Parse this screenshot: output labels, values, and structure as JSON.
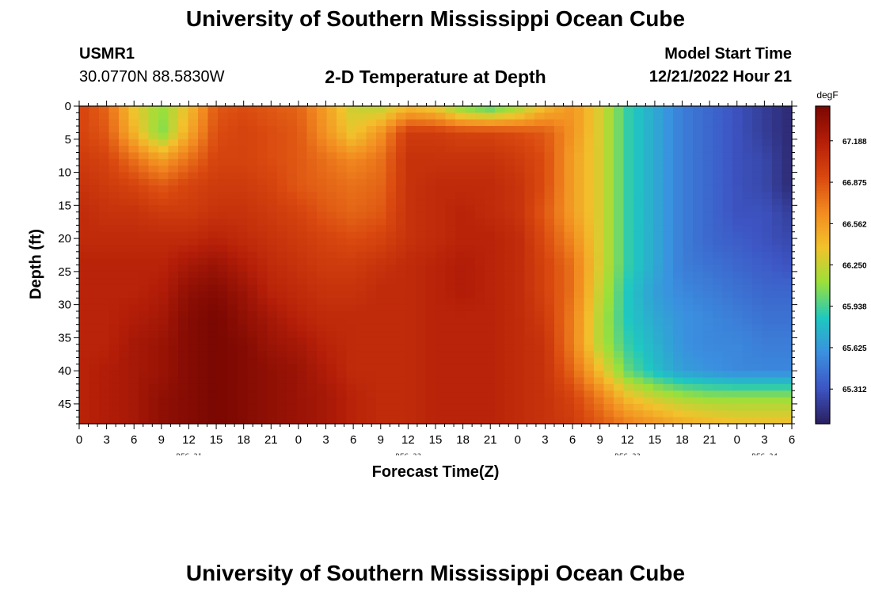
{
  "page": {
    "title_top": "University of Southern Mississippi Ocean Cube",
    "title_bottom": "University of Southern Mississippi Ocean Cube",
    "station_id": "USMR1",
    "station_coords": "30.0770N  88.5830W",
    "plot_title": "2-D Temperature at Depth",
    "model_start_label": "Model Start Time",
    "model_start_value": "12/21/2022 Hour 21"
  },
  "colors": {
    "palette": [
      "#2a1f5e",
      "#3d55c4",
      "#3b8fe0",
      "#1fc8c0",
      "#9be03a",
      "#f2c22c",
      "#f28a20",
      "#d9480f",
      "#b41e08",
      "#7a0702"
    ]
  },
  "chart_data": {
    "type": "heatmap",
    "title": "2-D Temperature at Depth",
    "xlabel": "Forecast Time(Z)",
    "ylabel": "Depth (ft)",
    "x_range_hours": [
      0,
      78
    ],
    "x_major_step_hours": 3,
    "x_tick_labels": [
      "0",
      "3",
      "6",
      "9",
      "12",
      "15",
      "18",
      "21",
      "0",
      "3",
      "6",
      "9",
      "12",
      "15",
      "18",
      "21",
      "0",
      "3",
      "6",
      "9",
      "12",
      "15",
      "18",
      "21",
      "0",
      "3",
      "6"
    ],
    "date_labels": [
      {
        "label": "DEC 21",
        "hour": 12
      },
      {
        "label": "DEC 22",
        "hour": 36
      },
      {
        "label": "DEC 23",
        "hour": 60
      },
      {
        "label": "DEC 24",
        "hour": 75
      }
    ],
    "y_range_ft": [
      0,
      48
    ],
    "y_tick_values": [
      0,
      5,
      10,
      15,
      20,
      25,
      30,
      35,
      40,
      45
    ],
    "y_tick_labels": [
      "0",
      "5",
      "10",
      "15",
      "20",
      "25",
      "30",
      "35",
      "40",
      "45"
    ],
    "colorbar": {
      "unit_label": "degF",
      "min": 65.05,
      "max": 67.45,
      "tick_values": [
        65.312,
        65.625,
        65.938,
        66.25,
        66.562,
        66.875,
        67.188
      ],
      "tick_labels": [
        "65.312",
        "65.625",
        "65.938",
        "66.250",
        "66.562",
        "66.875",
        "67.188"
      ]
    },
    "grid": {
      "x_hours": [
        0,
        3,
        6,
        9,
        12,
        15,
        18,
        21,
        24,
        27,
        30,
        33,
        36,
        39,
        42,
        45,
        48,
        51,
        54,
        57,
        60,
        63,
        66,
        69,
        72,
        75,
        78
      ],
      "y_depths_ft": [
        0,
        4,
        8,
        12,
        16,
        20,
        24,
        28,
        32,
        36,
        40,
        44,
        48
      ],
      "values_degF": [
        [
          66.95,
          66.8,
          66.35,
          66.1,
          66.4,
          66.85,
          66.9,
          66.85,
          66.8,
          66.55,
          66.25,
          66.2,
          66.4,
          66.3,
          66.0,
          65.9,
          66.1,
          66.4,
          66.6,
          66.3,
          65.9,
          65.7,
          65.5,
          65.4,
          65.3,
          65.2,
          65.1
        ],
        [
          66.95,
          66.85,
          66.45,
          66.05,
          66.5,
          66.9,
          66.95,
          66.9,
          66.85,
          66.6,
          66.35,
          66.6,
          67.0,
          67.0,
          66.95,
          66.95,
          66.9,
          66.85,
          66.6,
          66.3,
          65.9,
          65.7,
          65.5,
          65.4,
          65.3,
          65.2,
          65.1
        ],
        [
          67.0,
          66.95,
          66.75,
          66.55,
          66.75,
          66.95,
          66.95,
          66.9,
          66.85,
          66.75,
          66.65,
          66.75,
          67.05,
          67.05,
          67.05,
          67.05,
          67.0,
          66.9,
          66.55,
          66.3,
          65.9,
          65.7,
          65.5,
          65.4,
          65.3,
          65.25,
          65.1
        ],
        [
          67.05,
          67.0,
          66.95,
          66.85,
          66.95,
          67.0,
          67.0,
          66.95,
          66.85,
          66.8,
          66.75,
          66.8,
          67.05,
          67.1,
          67.1,
          67.1,
          67.05,
          66.9,
          66.55,
          66.3,
          65.9,
          65.7,
          65.5,
          65.4,
          65.3,
          65.25,
          65.1
        ],
        [
          67.1,
          67.05,
          67.05,
          67.0,
          67.0,
          67.05,
          67.05,
          67.0,
          66.95,
          66.85,
          66.8,
          66.85,
          67.05,
          67.1,
          67.15,
          67.1,
          67.05,
          66.85,
          66.55,
          66.3,
          65.9,
          65.7,
          65.5,
          65.4,
          65.3,
          65.3,
          65.2
        ],
        [
          67.1,
          67.1,
          67.1,
          67.1,
          67.1,
          67.15,
          67.1,
          67.05,
          67.0,
          66.95,
          66.9,
          66.95,
          67.05,
          67.1,
          67.15,
          67.15,
          67.1,
          66.9,
          66.65,
          66.3,
          65.9,
          65.7,
          65.5,
          65.4,
          65.35,
          65.3,
          65.25
        ],
        [
          67.15,
          67.15,
          67.15,
          67.15,
          67.25,
          67.3,
          67.2,
          67.1,
          67.05,
          67.0,
          67.0,
          67.05,
          67.1,
          67.15,
          67.2,
          67.15,
          67.1,
          66.95,
          66.75,
          66.3,
          65.9,
          65.7,
          65.5,
          65.45,
          65.4,
          65.35,
          65.3
        ],
        [
          67.15,
          67.15,
          67.15,
          67.2,
          67.35,
          67.4,
          67.3,
          67.15,
          67.1,
          67.05,
          67.05,
          67.1,
          67.1,
          67.15,
          67.2,
          67.15,
          67.1,
          66.95,
          66.75,
          66.25,
          65.85,
          65.65,
          65.55,
          65.5,
          65.45,
          65.4,
          65.4
        ],
        [
          67.15,
          67.15,
          67.2,
          67.25,
          67.4,
          67.45,
          67.35,
          67.25,
          67.15,
          67.1,
          67.1,
          67.1,
          67.1,
          67.15,
          67.15,
          67.15,
          67.1,
          67.0,
          66.7,
          66.2,
          65.85,
          65.7,
          65.6,
          65.55,
          65.5,
          65.45,
          65.45
        ],
        [
          67.15,
          67.15,
          67.25,
          67.3,
          67.4,
          67.45,
          67.4,
          67.3,
          67.25,
          67.15,
          67.1,
          67.1,
          67.1,
          67.15,
          67.15,
          67.15,
          67.1,
          67.05,
          66.7,
          66.2,
          65.9,
          65.75,
          65.6,
          65.55,
          65.55,
          65.5,
          65.5
        ],
        [
          67.15,
          67.2,
          67.25,
          67.3,
          67.4,
          67.45,
          67.4,
          67.35,
          67.3,
          67.2,
          67.1,
          67.1,
          67.1,
          67.15,
          67.15,
          67.15,
          67.1,
          67.05,
          66.8,
          66.4,
          66.0,
          65.8,
          65.65,
          65.6,
          65.55,
          65.55,
          65.55
        ],
        [
          67.15,
          67.2,
          67.25,
          67.35,
          67.4,
          67.45,
          67.4,
          67.35,
          67.3,
          67.25,
          67.15,
          67.1,
          67.1,
          67.15,
          67.15,
          67.15,
          67.1,
          67.05,
          66.95,
          66.7,
          66.4,
          66.25,
          66.15,
          66.1,
          66.1,
          66.1,
          66.1
        ],
        [
          67.15,
          67.2,
          67.25,
          67.35,
          67.4,
          67.45,
          67.4,
          67.35,
          67.3,
          67.25,
          67.15,
          67.1,
          67.1,
          67.15,
          67.15,
          67.15,
          67.1,
          67.05,
          67.0,
          66.85,
          66.7,
          66.6,
          66.5,
          66.45,
          66.4,
          66.4,
          66.4
        ]
      ]
    }
  }
}
